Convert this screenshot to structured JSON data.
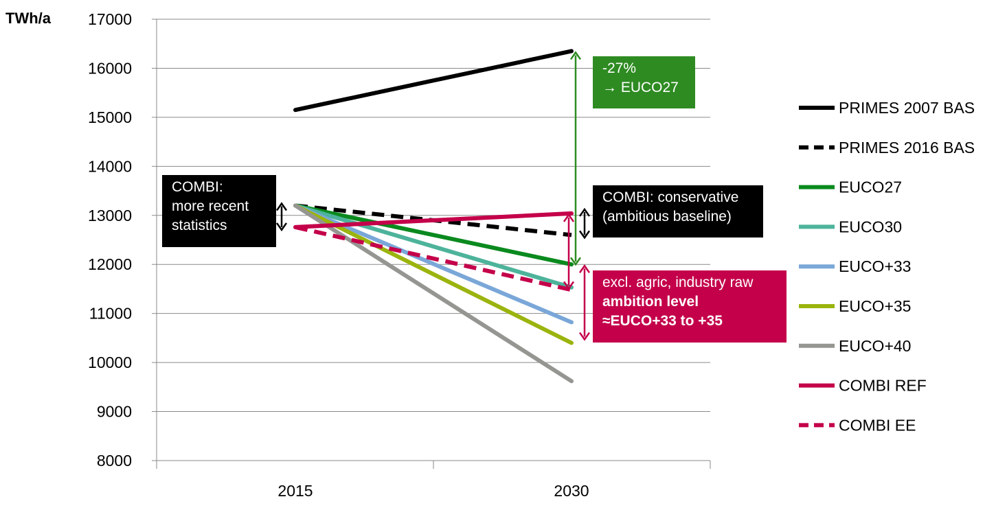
{
  "chart_data": {
    "type": "line",
    "ylabel": "TWh/a",
    "ylim": [
      8000,
      17000
    ],
    "yticks": [
      8000,
      9000,
      10000,
      11000,
      12000,
      13000,
      14000,
      15000,
      16000,
      17000
    ],
    "categories": [
      "2015",
      "2030"
    ],
    "grid": true,
    "legend_position": "right",
    "series": [
      {
        "name": "PRIMES 2007 BAS",
        "values": [
          15150,
          16350
        ],
        "color": "#000000",
        "dashed": false
      },
      {
        "name": "PRIMES 2016 BAS",
        "values": [
          13200,
          12600
        ],
        "color": "#000000",
        "dashed": true
      },
      {
        "name": "EUCO27",
        "values": [
          13200,
          12000
        ],
        "color": "#0a8a1e",
        "dashed": false
      },
      {
        "name": "EUCO30",
        "values": [
          13200,
          11530
        ],
        "color": "#4db39b",
        "dashed": false
      },
      {
        "name": "EUCO+33",
        "values": [
          13200,
          10820
        ],
        "color": "#7aa7d8",
        "dashed": false
      },
      {
        "name": "EUCO+35",
        "values": [
          13200,
          10400
        ],
        "color": "#9bb40e",
        "dashed": false
      },
      {
        "name": "EUCO+40",
        "values": [
          13200,
          9620
        ],
        "color": "#959692",
        "dashed": false
      },
      {
        "name": "COMBI REF",
        "values": [
          12760,
          13040
        ],
        "color": "#c4004a",
        "dashed": false
      },
      {
        "name": "COMBI EE",
        "values": [
          12760,
          11480
        ],
        "color": "#c4004a",
        "dashed": true
      }
    ],
    "annotations": [
      {
        "id": "euco27",
        "lines": [
          "-27%",
          "→ EUCO27"
        ],
        "bold_lines": [],
        "color": "#2e8b22"
      },
      {
        "id": "recent",
        "lines": [
          "COMBI:",
          "more recent",
          "statistics"
        ],
        "bold_lines": [],
        "color": "#000000"
      },
      {
        "id": "conservative",
        "lines": [
          "COMBI: conservative",
          "(ambitious baseline)"
        ],
        "bold_lines": [],
        "color": "#000000"
      },
      {
        "id": "ambition",
        "lines": [
          "excl. agric, industry  raw"
        ],
        "bold_lines": [
          "ambition level",
          "≈EUCO+33 to +35"
        ],
        "color": "#c4004a"
      }
    ]
  }
}
